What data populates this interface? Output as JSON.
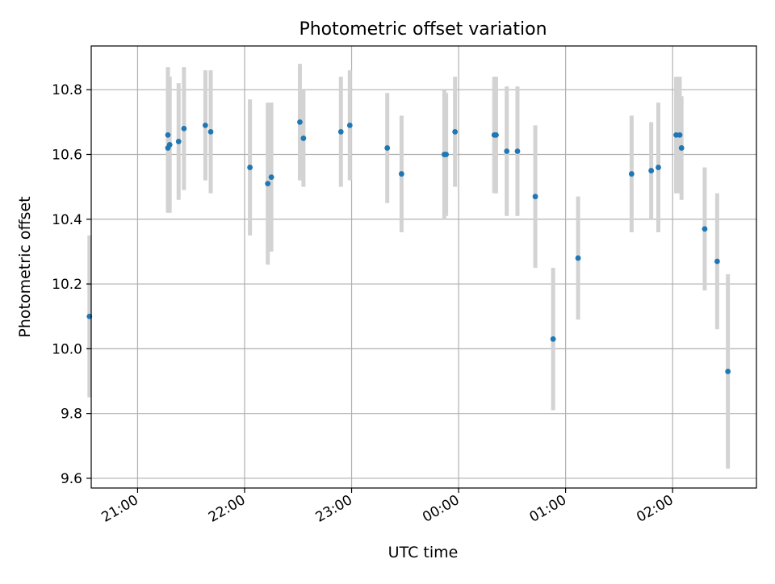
{
  "chart_data": {
    "type": "scatter",
    "title": "Photometric offset variation",
    "xlabel": "UTC time",
    "ylabel": "Photometric offset",
    "x_axis_type": "time",
    "x_tick_labels": [
      "21:00",
      "22:00",
      "23:00",
      "00:00",
      "01:00",
      "02:00"
    ],
    "y_tick_labels": [
      "9.6",
      "9.8",
      "10.0",
      "10.2",
      "10.4",
      "10.6",
      "10.8"
    ],
    "y_ticks": [
      9.6,
      9.8,
      10.0,
      10.2,
      10.4,
      10.6,
      10.8
    ],
    "ylim": [
      9.57,
      10.935
    ],
    "xlim": [
      "20:34",
      "02:47"
    ],
    "grid": true,
    "colors": {
      "points": "#1f77b4",
      "error_bars": "#d3d3d3",
      "grid": "#b0b0b0"
    },
    "points": [
      {
        "t": "20:33",
        "y": 10.1,
        "err": 0.25
      },
      {
        "t": "21:17",
        "y": 10.66,
        "err": 0.21
      },
      {
        "t": "21:17",
        "y": 10.62,
        "err": 0.2
      },
      {
        "t": "21:18",
        "y": 10.63,
        "err": 0.21
      },
      {
        "t": "21:23",
        "y": 10.64,
        "err": 0.18
      },
      {
        "t": "21:26",
        "y": 10.68,
        "err": 0.19
      },
      {
        "t": "21:38",
        "y": 10.69,
        "err": 0.17
      },
      {
        "t": "21:41",
        "y": 10.67,
        "err": 0.19
      },
      {
        "t": "22:03",
        "y": 10.56,
        "err": 0.21
      },
      {
        "t": "22:13",
        "y": 10.51,
        "err": 0.25
      },
      {
        "t": "22:15",
        "y": 10.53,
        "err": 0.23
      },
      {
        "t": "22:31",
        "y": 10.7,
        "err": 0.18
      },
      {
        "t": "22:33",
        "y": 10.65,
        "err": 0.15
      },
      {
        "t": "22:54",
        "y": 10.67,
        "err": 0.17
      },
      {
        "t": "22:59",
        "y": 10.69,
        "err": 0.17
      },
      {
        "t": "23:20",
        "y": 10.62,
        "err": 0.17
      },
      {
        "t": "23:28",
        "y": 10.54,
        "err": 0.18
      },
      {
        "t": "23:52",
        "y": 10.6,
        "err": 0.2
      },
      {
        "t": "23:53",
        "y": 10.6,
        "err": 0.19
      },
      {
        "t": "23:58",
        "y": 10.67,
        "err": 0.17
      },
      {
        "t": "00:20",
        "y": 10.66,
        "err": 0.18
      },
      {
        "t": "00:21",
        "y": 10.66,
        "err": 0.18
      },
      {
        "t": "00:27",
        "y": 10.61,
        "err": 0.2
      },
      {
        "t": "00:33",
        "y": 10.61,
        "err": 0.2
      },
      {
        "t": "00:43",
        "y": 10.47,
        "err": 0.22
      },
      {
        "t": "00:53",
        "y": 10.03,
        "err": 0.22
      },
      {
        "t": "01:07",
        "y": 10.28,
        "err": 0.19
      },
      {
        "t": "01:37",
        "y": 10.54,
        "err": 0.18
      },
      {
        "t": "01:48",
        "y": 10.55,
        "err": 0.15
      },
      {
        "t": "01:52",
        "y": 10.56,
        "err": 0.2
      },
      {
        "t": "02:02",
        "y": 10.66,
        "err": 0.18
      },
      {
        "t": "02:04",
        "y": 10.66,
        "err": 0.18
      },
      {
        "t": "02:05",
        "y": 10.62,
        "err": 0.16
      },
      {
        "t": "02:18",
        "y": 10.37,
        "err": 0.19
      },
      {
        "t": "02:25",
        "y": 10.27,
        "err": 0.21
      },
      {
        "t": "02:31",
        "y": 9.93,
        "err": 0.3
      }
    ]
  }
}
